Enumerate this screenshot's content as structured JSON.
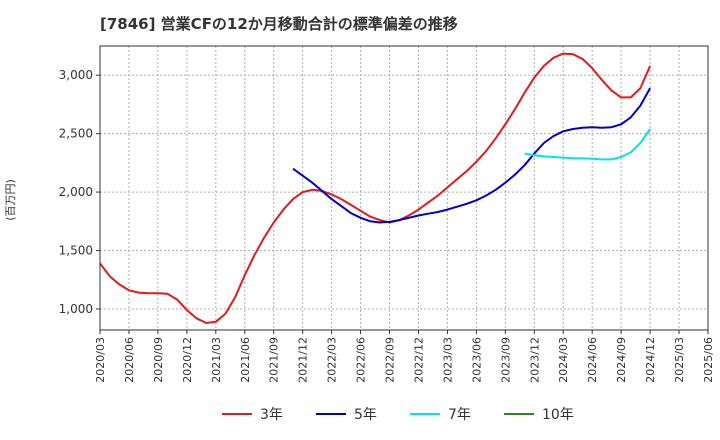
{
  "chart_data": {
    "type": "line",
    "title": "[7846]  営業CFの12か月移動合計の標準偏差の推移",
    "ylabel": "(百万円)",
    "xlabel": "",
    "ylim": [
      820,
      3250
    ],
    "y_ticks": [
      1000,
      1500,
      2000,
      2500,
      3000
    ],
    "y_tick_labels": [
      "1,000",
      "1,500",
      "2,000",
      "2,500",
      "3,000"
    ],
    "x_ticks": [
      "2020/03",
      "2020/06",
      "2020/09",
      "2020/12",
      "2021/03",
      "2021/06",
      "2021/09",
      "2021/12",
      "2022/03",
      "2022/06",
      "2022/09",
      "2022/12",
      "2023/03",
      "2023/06",
      "2023/09",
      "2023/12",
      "2024/03",
      "2024/06",
      "2024/09",
      "2024/12",
      "2025/03",
      "2025/06"
    ],
    "x_range": [
      "2020/03",
      "2025/06"
    ],
    "grid": true,
    "legend_position": "bottom",
    "series": [
      {
        "name": "3年",
        "color": "#e41a1c",
        "x": [
          "2020/03",
          "2020/04",
          "2020/05",
          "2020/06",
          "2020/07",
          "2020/08",
          "2020/09",
          "2020/10",
          "2020/11",
          "2020/12",
          "2021/01",
          "2021/02",
          "2021/03",
          "2021/04",
          "2021/05",
          "2021/06",
          "2021/07",
          "2021/08",
          "2021/09",
          "2021/10",
          "2021/11",
          "2021/12",
          "2022/01",
          "2022/02",
          "2022/03",
          "2022/04",
          "2022/05",
          "2022/06",
          "2022/07",
          "2022/08",
          "2022/09",
          "2022/10",
          "2022/11",
          "2022/12",
          "2023/01",
          "2023/02",
          "2023/03",
          "2023/04",
          "2023/05",
          "2023/06",
          "2023/07",
          "2023/08",
          "2023/09",
          "2023/10",
          "2023/11",
          "2023/12",
          "2024/01",
          "2024/02",
          "2024/03",
          "2024/04",
          "2024/05",
          "2024/06",
          "2024/07",
          "2024/08",
          "2024/09",
          "2024/10",
          "2024/11",
          "2024/12"
        ],
        "values": [
          1390,
          1280,
          1210,
          1160,
          1140,
          1135,
          1135,
          1130,
          1080,
          990,
          920,
          880,
          890,
          960,
          1100,
          1290,
          1460,
          1610,
          1740,
          1850,
          1940,
          2000,
          2020,
          2010,
          1980,
          1940,
          1890,
          1840,
          1790,
          1760,
          1740,
          1760,
          1800,
          1850,
          1910,
          1970,
          2040,
          2110,
          2180,
          2260,
          2350,
          2460,
          2580,
          2710,
          2850,
          2980,
          3080,
          3150,
          3185,
          3180,
          3140,
          3060,
          2960,
          2870,
          2810,
          2810,
          2890,
          3080
        ]
      },
      {
        "name": "5年",
        "color": "#0000cc",
        "x": [
          "2021/11",
          "2021/12",
          "2022/01",
          "2022/02",
          "2022/03",
          "2022/04",
          "2022/05",
          "2022/06",
          "2022/07",
          "2022/08",
          "2022/09",
          "2022/10",
          "2022/11",
          "2022/12",
          "2023/01",
          "2023/02",
          "2023/03",
          "2023/04",
          "2023/05",
          "2023/06",
          "2023/07",
          "2023/08",
          "2023/09",
          "2023/10",
          "2023/11",
          "2023/12",
          "2024/01",
          "2024/02",
          "2024/03",
          "2024/04",
          "2024/05",
          "2024/06",
          "2024/07",
          "2024/08",
          "2024/09",
          "2024/10",
          "2024/11",
          "2024/12"
        ],
        "values": [
          2200,
          2140,
          2080,
          2010,
          1940,
          1880,
          1820,
          1780,
          1750,
          1740,
          1745,
          1760,
          1780,
          1800,
          1815,
          1830,
          1850,
          1875,
          1900,
          1930,
          1970,
          2020,
          2080,
          2150,
          2230,
          2330,
          2420,
          2480,
          2520,
          2540,
          2550,
          2555,
          2550,
          2555,
          2580,
          2640,
          2740,
          2890
        ]
      },
      {
        "name": "7年",
        "color": "#00e5ee",
        "x": [
          "2023/11",
          "2023/12",
          "2024/01",
          "2024/02",
          "2024/03",
          "2024/04",
          "2024/05",
          "2024/06",
          "2024/07",
          "2024/08",
          "2024/09",
          "2024/10",
          "2024/11",
          "2024/12"
        ],
        "values": [
          2330,
          2315,
          2305,
          2300,
          2295,
          2290,
          2288,
          2285,
          2280,
          2280,
          2300,
          2340,
          2420,
          2540
        ]
      },
      {
        "name": "10年",
        "color": "#228b22",
        "x": [],
        "values": []
      }
    ]
  }
}
